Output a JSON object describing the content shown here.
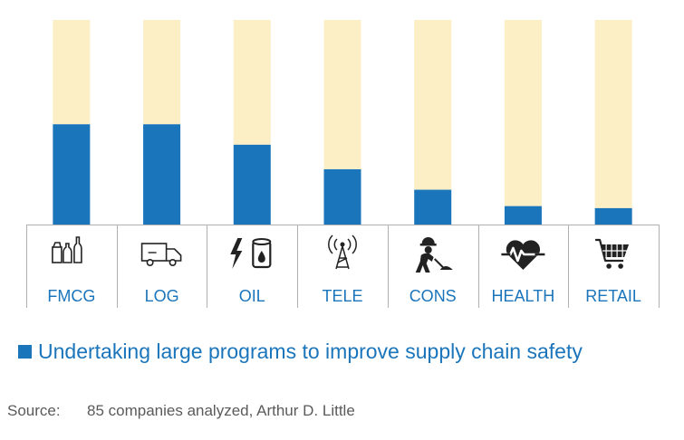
{
  "chart_data": {
    "type": "bar",
    "categories": [
      "FMCG",
      "LOG",
      "OIL",
      "TELE",
      "CONS",
      "HEALTH",
      "RETAIL"
    ],
    "icons": [
      "bottles-carton-icon",
      "delivery-truck-icon",
      "lightning-barrel-icon",
      "antenna-tower-icon",
      "construction-worker-icon",
      "heart-pulse-icon",
      "shopping-cart-icon"
    ],
    "series": [
      {
        "name": "Undertaking large programs to improve supply chain safety",
        "values": [
          49,
          49,
          39,
          27,
          17,
          9,
          8
        ]
      }
    ],
    "ylim": [
      0,
      100
    ],
    "colors": {
      "series": "#1b75bb",
      "remainder": "#fcefc6",
      "axis": "#b0b0b0"
    }
  },
  "legend": {
    "label": "Undertaking large programs to improve supply chain safety"
  },
  "source": {
    "label": "Source:",
    "text": "85 companies analyzed, Arthur D. Little"
  }
}
